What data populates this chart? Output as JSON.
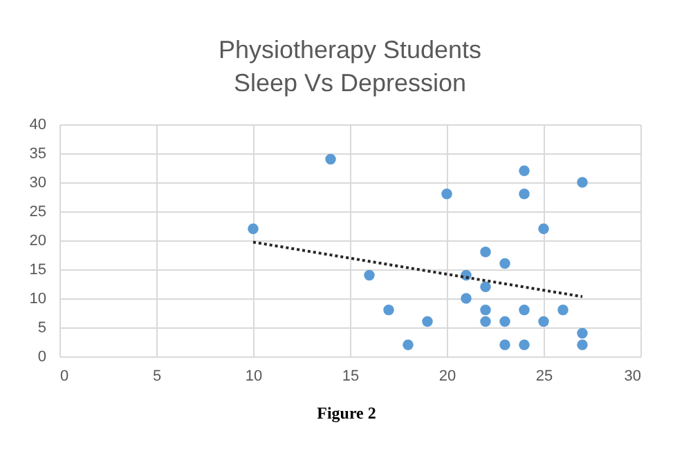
{
  "chart_data": {
    "type": "scatter",
    "title": "Physiotherapy Students\nSleep Vs Depression",
    "xlim": [
      0,
      30
    ],
    "xticks": [
      0,
      5,
      10,
      15,
      20,
      25,
      30
    ],
    "ylim": [
      0,
      40
    ],
    "yticks": [
      0,
      5,
      10,
      15,
      20,
      25,
      30,
      35,
      40
    ],
    "grid": true,
    "series": [
      {
        "color": "#5b9bd5",
        "marker": "circle",
        "x": [
          10,
          14,
          16,
          17,
          18,
          19,
          20,
          21,
          21,
          22,
          22,
          22,
          22,
          23,
          23,
          23,
          24,
          24,
          24,
          24,
          25,
          25,
          26,
          27,
          27,
          27
        ],
        "values": [
          22,
          34,
          14,
          8,
          2,
          6,
          28,
          14,
          10,
          18,
          12,
          8,
          6,
          16,
          6,
          2,
          32,
          28,
          8,
          2,
          22,
          6,
          8,
          30,
          4,
          2
        ]
      },
      {
        "type": "line",
        "color": "#262626",
        "line_style": "dotted",
        "x": [
          10,
          27
        ],
        "values": [
          19.7,
          10.3
        ]
      }
    ],
    "annotations": [
      "Figure 2"
    ]
  }
}
